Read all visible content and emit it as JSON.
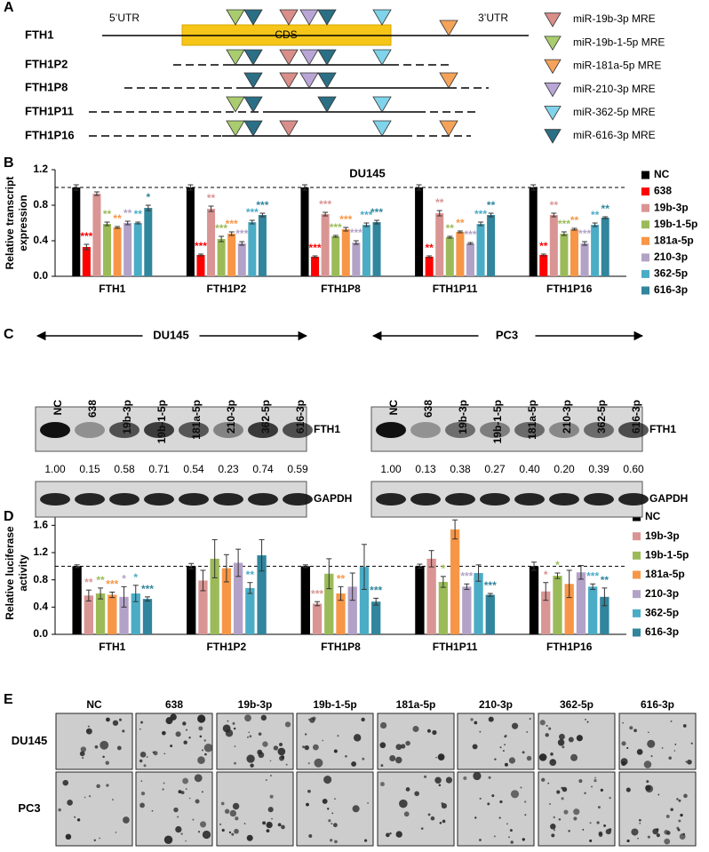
{
  "panel_labels": [
    "A",
    "B",
    "C",
    "D",
    "E"
  ],
  "diagram": {
    "utr5": "5’UTR",
    "utr3": "3’UTR",
    "cds": "CDS",
    "genes": [
      "FTH1",
      "FTH1P2",
      "FTH1P8",
      "FTH1P11",
      "FTH1P16"
    ],
    "legend": [
      {
        "label": "miR-19b-3p MRE",
        "color": "#d98e8a"
      },
      {
        "label": "miR-19b-1-5p MRE",
        "color": "#a9cc6e"
      },
      {
        "label": "miR-181a-5p MRE",
        "color": "#f5a35a"
      },
      {
        "label": "miR-210-3p MRE",
        "color": "#b9a6d6"
      },
      {
        "label": "miR-362-5p MRE",
        "color": "#7fd3ea"
      },
      {
        "label": "miR-616-3p MRE",
        "color": "#2a6f85"
      }
    ]
  },
  "chart_data": [
    {
      "type": "bar",
      "title": "DU145",
      "ylabel": [
        "Relative transcript",
        "expression"
      ],
      "categories": [
        "FTH1",
        "FTH1P2",
        "FTH1P8",
        "FTH1P11",
        "FTH1P16"
      ],
      "ylim": [
        0,
        1.2
      ],
      "yticks": [
        {
          "value": 0,
          "label": "0.0"
        },
        0.4,
        0.8,
        1.2
      ],
      "refline": 1,
      "legend": "right",
      "series": [
        {
          "name": "NC",
          "color": "#000000",
          "values": [
            1.0,
            1.0,
            1.0,
            1.0,
            1.0
          ],
          "errors": [
            0.03,
            0.03,
            0.03,
            0.03,
            0.03
          ],
          "stars": [
            null,
            null,
            null,
            null,
            null
          ]
        },
        {
          "name": "638",
          "color": "#ff0000",
          "values": [
            0.33,
            0.24,
            0.22,
            0.22,
            0.24
          ],
          "errors": [
            0.03,
            0.01,
            0.01,
            0.01,
            0.01
          ],
          "stars": [
            "***",
            "***",
            "***",
            "**",
            "**"
          ]
        },
        {
          "name": "19b-3p",
          "color": "#d99594",
          "values": [
            0.93,
            0.76,
            0.7,
            0.71,
            0.69
          ],
          "errors": [
            0.02,
            0.03,
            0.02,
            0.03,
            0.02
          ],
          "stars": [
            null,
            "**",
            "***",
            "**",
            "**"
          ]
        },
        {
          "name": "19b-1-5p",
          "color": "#9bbb59",
          "values": [
            0.59,
            0.42,
            0.45,
            0.44,
            0.48
          ],
          "errors": [
            0.02,
            0.03,
            0.01,
            0.01,
            0.02
          ],
          "stars": [
            "**",
            "***",
            "***",
            "**",
            "***"
          ]
        },
        {
          "name": "181a-5p",
          "color": "#f79646",
          "values": [
            0.55,
            0.48,
            0.53,
            0.5,
            0.53
          ],
          "errors": [
            0.01,
            0.02,
            0.02,
            0.01,
            0.01
          ],
          "stars": [
            "**",
            "***",
            "***",
            "**",
            "**"
          ]
        },
        {
          "name": "210-3p",
          "color": "#b3a2c7",
          "values": [
            0.6,
            0.37,
            0.38,
            0.37,
            0.37
          ],
          "errors": [
            0.02,
            0.02,
            0.02,
            0.01,
            0.02
          ],
          "stars": [
            "**",
            "***",
            "***",
            "***",
            "***"
          ]
        },
        {
          "name": "362-5p",
          "color": "#4bacc6",
          "values": [
            0.6,
            0.61,
            0.58,
            0.59,
            0.58
          ],
          "errors": [
            0.01,
            0.02,
            0.02,
            0.02,
            0.02
          ],
          "stars": [
            "**",
            "***",
            "***",
            "***",
            "**"
          ]
        },
        {
          "name": "616-3p",
          "color": "#31859c",
          "values": [
            0.77,
            0.69,
            0.61,
            0.69,
            0.66
          ],
          "errors": [
            0.03,
            0.02,
            0.02,
            0.02,
            0.01
          ],
          "stars": [
            "*",
            "***",
            "***",
            "**",
            "**"
          ]
        }
      ]
    },
    {
      "type": "bar",
      "ylabel": [
        "Relative luciferase",
        "activity"
      ],
      "categories": [
        "FTH1",
        "FTH1P2",
        "FTH1P8",
        "FTH1P11",
        "FTH1P16"
      ],
      "ylim": [
        0,
        1.8
      ],
      "yticks": [
        {
          "value": 0,
          "label": "0.0"
        },
        0.4,
        0.8,
        1.2,
        1.6
      ],
      "refline": 1,
      "legend": "right",
      "series": [
        {
          "name": "NC",
          "color": "#000000",
          "values": [
            1.0,
            1.0,
            1.0,
            1.0,
            1.0
          ],
          "errors": [
            0.02,
            0.04,
            0.02,
            0.03,
            0.06
          ],
          "stars": [
            null,
            null,
            null,
            null,
            null
          ]
        },
        {
          "name": "19b-3p",
          "color": "#d99594",
          "values": [
            0.57,
            0.79,
            0.45,
            1.11,
            0.63
          ],
          "errors": [
            0.08,
            0.15,
            0.03,
            0.12,
            0.13
          ],
          "stars": [
            "**",
            null,
            "***",
            null,
            "*"
          ]
        },
        {
          "name": "19b-1-5p",
          "color": "#9bbb59",
          "values": [
            0.6,
            1.11,
            0.89,
            0.77,
            0.86
          ],
          "errors": [
            0.08,
            0.28,
            0.22,
            0.08,
            0.04
          ],
          "stars": [
            "**",
            null,
            null,
            "*",
            "*"
          ]
        },
        {
          "name": "181a-5p",
          "color": "#f79646",
          "values": [
            0.58,
            0.97,
            0.6,
            1.54,
            0.74
          ],
          "errors": [
            0.04,
            0.2,
            0.1,
            0.14,
            0.2
          ],
          "stars": [
            "***",
            null,
            "**",
            null,
            null
          ]
        },
        {
          "name": "210-3p",
          "color": "#b3a2c7",
          "values": [
            0.55,
            1.05,
            0.7,
            0.7,
            0.91
          ],
          "errors": [
            0.15,
            0.2,
            0.2,
            0.04,
            0.1
          ],
          "stars": [
            "*",
            null,
            null,
            "***",
            null
          ]
        },
        {
          "name": "362-5p",
          "color": "#4bacc6",
          "values": [
            0.6,
            0.68,
            0.99,
            0.9,
            0.7
          ],
          "errors": [
            0.12,
            0.08,
            0.33,
            0.12,
            0.04
          ],
          "stars": [
            "*",
            "**",
            null,
            null,
            "***"
          ]
        },
        {
          "name": "616-3p",
          "color": "#31859c",
          "values": [
            0.52,
            1.16,
            0.48,
            0.58,
            0.55
          ],
          "errors": [
            0.03,
            0.23,
            0.05,
            0.02,
            0.13
          ],
          "stars": [
            "***",
            null,
            "***",
            "***",
            "**"
          ]
        }
      ]
    }
  ],
  "blot": {
    "groups": [
      {
        "cell": "DU145",
        "lanes": [
          "NC",
          "638",
          "19b-3p",
          "19b-1-5p",
          "181a-5p",
          "210-3p",
          "362-5p",
          "616-3p"
        ],
        "protein": "FTH1",
        "quant": [
          "1.00",
          "0.15",
          "0.58",
          "0.71",
          "0.54",
          "0.23",
          "0.74",
          "0.59"
        ],
        "control": "GAPDH"
      },
      {
        "cell": "PC3",
        "lanes": [
          "NC",
          "638",
          "19b-3p",
          "19b-1-5p",
          "181a-5p",
          "210-3p",
          "362-5p",
          "616-3p"
        ],
        "protein": "FTH1",
        "quant": [
          "1.00",
          "0.13",
          "0.38",
          "0.27",
          "0.40",
          "0.20",
          "0.39",
          "0.60"
        ],
        "control": "GAPDH"
      }
    ]
  },
  "colony": {
    "columns": [
      "NC",
      "638",
      "19b-3p",
      "19b-1-5p",
      "181a-5p",
      "210-3p",
      "362-5p",
      "616-3p"
    ],
    "rows": [
      "DU145",
      "PC3"
    ]
  }
}
